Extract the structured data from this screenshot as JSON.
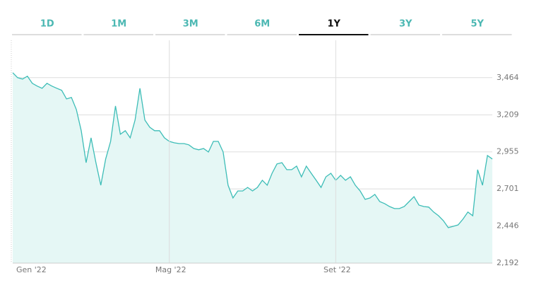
{
  "tabs": [
    {
      "label": "1D",
      "selected": false
    },
    {
      "label": "1M",
      "selected": false
    },
    {
      "label": "3M",
      "selected": false
    },
    {
      "label": "6M",
      "selected": false
    },
    {
      "label": "1Y",
      "selected": true
    },
    {
      "label": "3Y",
      "selected": false
    },
    {
      "label": "5Y",
      "selected": false
    }
  ],
  "chart_data": {
    "type": "area",
    "color": "#3dbdb7",
    "fill": "#e5f7f5",
    "categories": [
      "Gen '22",
      null,
      null,
      null,
      null,
      null,
      null,
      null,
      null,
      null,
      null,
      null,
      null,
      null,
      null,
      null,
      null,
      null,
      null,
      null,
      null,
      null,
      null,
      null,
      null,
      null,
      null,
      null,
      null,
      null,
      null,
      null,
      "Mag '22",
      null,
      null,
      null,
      null,
      null,
      null,
      null,
      null,
      null,
      null,
      null,
      null,
      null,
      null,
      null,
      null,
      null,
      null,
      null,
      null,
      null,
      null,
      null,
      null,
      null,
      null,
      null,
      null,
      null,
      null,
      null,
      null,
      null,
      "Set '22",
      null,
      null,
      null,
      null,
      null,
      null,
      null,
      null,
      null,
      null,
      null,
      null,
      null,
      null,
      null,
      null,
      null,
      null,
      null,
      null,
      null,
      null,
      null,
      null,
      null,
      null,
      null,
      null,
      null,
      null,
      null,
      null
    ],
    "values": [
      3498,
      3464,
      3454,
      3474,
      3425,
      3406,
      3391,
      3425,
      3406,
      3391,
      3377,
      3318,
      3328,
      3245,
      3100,
      2881,
      3051,
      2881,
      2726,
      2906,
      3027,
      3270,
      3076,
      3100,
      3051,
      3173,
      3391,
      3173,
      3124,
      3100,
      3100,
      3051,
      3027,
      3017,
      3012,
      3012,
      3003,
      2978,
      2969,
      2978,
      2954,
      3027,
      3027,
      2954,
      2726,
      2639,
      2687,
      2687,
      2711,
      2687,
      2711,
      2760,
      2726,
      2808,
      2872,
      2881,
      2833,
      2833,
      2857,
      2784,
      2857,
      2808,
      2760,
      2711,
      2784,
      2808,
      2760,
      2794,
      2760,
      2784,
      2726,
      2687,
      2629,
      2639,
      2663,
      2614,
      2600,
      2580,
      2566,
      2566,
      2580,
      2614,
      2648,
      2590,
      2580,
      2576,
      2542,
      2517,
      2483,
      2435,
      2444,
      2454,
      2493,
      2542,
      2517,
      2833,
      2726,
      2930,
      2906
    ],
    "ylim": [
      2192,
      3720
    ],
    "yticks": [
      {
        "value": 2192,
        "label": "2,192"
      },
      {
        "value": 2446,
        "label": "2,446"
      },
      {
        "value": 2701,
        "label": "2,701"
      },
      {
        "value": 2955,
        "label": "2,955"
      },
      {
        "value": 3209,
        "label": "3,209"
      },
      {
        "value": 3464,
        "label": "3,464"
      }
    ],
    "grid": true
  }
}
